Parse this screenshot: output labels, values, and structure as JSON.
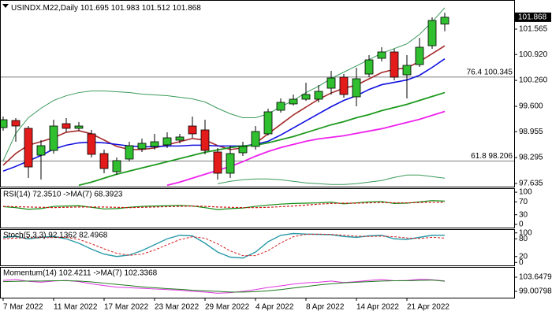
{
  "chart_data": [
    {
      "type": "candlestick",
      "title": "USINDX.M22,Daily",
      "categories": [
        "7 Mar 2022",
        null,
        null,
        null,
        "11 Mar 2022",
        null,
        null,
        null,
        "17 Mar 2022",
        null,
        null,
        null,
        "23 Mar 2022",
        null,
        null,
        null,
        "29 Mar 2022",
        null,
        null,
        null,
        "4 Apr 2022",
        null,
        null,
        null,
        "8 Apr 2022",
        null,
        null,
        null,
        "14 Apr 2022",
        null,
        null,
        null,
        "21 Apr 2022",
        null,
        null,
        null
      ],
      "open": [
        99.059,
        99.239,
        99.039,
        98.357,
        98.477,
        99.159,
        99.039,
        98.899,
        98.397,
        97.936,
        98.257,
        98.518,
        98.578,
        98.618,
        98.738,
        99.099,
        98.999,
        98.437,
        97.896,
        98.417,
        98.578,
        98.899,
        99.5,
        99.661,
        99.781,
        99.781,
        100.061,
        100.342,
        99.841,
        100.422,
        100.823,
        100.984,
        100.402,
        100.663,
        101.144,
        101.695
      ],
      "high": [
        99.34,
        99.3,
        99.099,
        98.738,
        99.259,
        99.3,
        99.199,
        98.999,
        98.498,
        98.297,
        98.698,
        98.778,
        98.899,
        98.939,
        98.899,
        99.34,
        99.259,
        98.538,
        98.598,
        98.698,
        99.099,
        99.54,
        99.801,
        99.901,
        100.202,
        100.141,
        100.502,
        100.422,
        100.583,
        100.904,
        101.104,
        101.064,
        100.904,
        101.345,
        101.866,
        101.983
      ],
      "low": [
        98.979,
        98.698,
        97.776,
        97.736,
        98.397,
        98.939,
        98.979,
        98.297,
        97.896,
        97.856,
        98.197,
        98.437,
        98.498,
        98.538,
        98.658,
        98.798,
        98.377,
        97.736,
        97.776,
        98.337,
        98.498,
        98.859,
        99.44,
        99.62,
        99.741,
        99.701,
        99.901,
        99.821,
        99.6,
        100.342,
        100.743,
        100.262,
        99.801,
        100.603,
        101.064,
        101.512
      ],
      "close": [
        99.259,
        99.099,
        98.056,
        98.598,
        99.099,
        99.039,
        99.099,
        98.377,
        98.016,
        98.217,
        98.598,
        98.658,
        98.698,
        98.798,
        98.819,
        98.899,
        98.477,
        97.896,
        98.397,
        98.578,
        98.959,
        99.46,
        99.701,
        99.781,
        99.901,
        99.981,
        100.322,
        99.901,
        100.302,
        100.783,
        100.984,
        100.342,
        100.643,
        101.104,
        101.786,
        101.868
      ],
      "up_color": "#2fbf2f",
      "down_color": "#e31b1b",
      "series": [
        {
          "color": "#a52a2a",
          "values": [
            98.1,
            98.4,
            98.61,
            98.7,
            98.8,
            98.94,
            98.98,
            98.9,
            98.74,
            98.58,
            98.5,
            98.5,
            98.54,
            98.62,
            98.7,
            98.78,
            98.74,
            98.6,
            98.5,
            98.54,
            98.66,
            98.9,
            99.14,
            99.38,
            99.58,
            99.78,
            99.94,
            100.06,
            100.14,
            100.3,
            100.46,
            100.54,
            100.58,
            100.74,
            100.94,
            101.14
          ]
        },
        {
          "color": "#1010e0",
          "values": [
            97.95,
            98.07,
            98.21,
            98.35,
            98.51,
            98.61,
            98.67,
            98.69,
            98.67,
            98.63,
            98.59,
            98.57,
            98.57,
            98.59,
            98.59,
            98.61,
            98.61,
            98.59,
            98.59,
            98.59,
            98.63,
            98.71,
            98.87,
            99.05,
            99.23,
            99.41,
            99.59,
            99.75,
            99.87,
            100.03,
            100.15,
            100.21,
            100.27,
            100.39,
            100.59,
            100.81
          ]
        },
        {
          "color": "#1e9a1e",
          "values": [
            null,
            null,
            null,
            null,
            null,
            null,
            97.59,
            97.67,
            97.77,
            97.87,
            97.95,
            98.03,
            98.11,
            98.19,
            98.27,
            98.35,
            98.43,
            98.49,
            98.55,
            98.59,
            98.61,
            98.67,
            98.75,
            98.83,
            98.93,
            99.03,
            99.13,
            99.21,
            99.31,
            99.39,
            99.49,
            99.57,
            99.65,
            99.75,
            99.85,
            99.95
          ]
        },
        {
          "color": "#ee22ee",
          "values": [
            null,
            null,
            null,
            null,
            null,
            null,
            null,
            null,
            null,
            null,
            null,
            null,
            null,
            97.59,
            97.67,
            97.77,
            97.87,
            97.97,
            98.07,
            98.19,
            98.33,
            98.45,
            98.55,
            98.63,
            98.71,
            98.77,
            98.81,
            98.85,
            98.91,
            98.97,
            99.03,
            99.11,
            99.19,
            99.27,
            99.37,
            99.47
          ]
        },
        {
          "color": "#3a9a5a",
          "values": [
            98.21,
            98.91,
            99.31,
            99.55,
            99.75,
            99.87,
            99.95,
            99.99,
            99.99,
            99.97,
            99.95,
            99.91,
            99.89,
            99.87,
            99.83,
            99.79,
            99.71,
            99.55,
            99.41,
            99.31,
            99.31,
            99.41,
            99.59,
            99.75,
            99.95,
            100.11,
            100.31,
            100.47,
            100.63,
            100.79,
            100.95,
            101.07,
            101.19,
            101.43,
            101.75,
            102.11
          ]
        },
        {
          "color": "#3a9a5a",
          "values": [
            null,
            null,
            null,
            null,
            null,
            null,
            null,
            null,
            null,
            null,
            null,
            null,
            null,
            null,
            null,
            null,
            null,
            97.63,
            97.69,
            97.73,
            97.75,
            97.75,
            97.73,
            97.69,
            97.65,
            97.63,
            97.61,
            97.61,
            97.63,
            97.67,
            97.71,
            97.79,
            97.85,
            97.85,
            97.81,
            97.77
          ]
        }
      ],
      "annotations": [
        {
          "text": "76.4 100.345",
          "value": 100.345
        },
        {
          "text": "61.8 98.206",
          "value": 98.206
        }
      ],
      "ylim": [
        97.555,
        102.267
      ],
      "yticks": [
        101.565,
        {
          "value": 100.92,
          "label": "100.920"
        },
        {
          "value": 100.26,
          "label": "100.260"
        },
        {
          "value": 99.6,
          "label": "99.600"
        },
        98.955,
        98.295,
        97.635
      ]
    },
    {
      "type": "line",
      "title": "RSI(14) 72.3510 ->MA(7) 68.3923",
      "series": [
        {
          "color": "#118a11",
          "values": [
            55,
            52,
            47,
            49,
            56,
            57,
            58,
            53,
            48,
            49,
            53,
            56,
            57,
            58,
            59,
            57,
            52,
            46,
            49,
            51,
            56,
            60,
            63,
            65,
            66,
            67,
            69,
            64,
            67,
            70,
            71,
            65,
            66,
            70,
            74,
            72.351
          ]
        },
        {
          "color": "#cc1111",
          "values": [
            56,
            55,
            54,
            53,
            52,
            53,
            54,
            54,
            54,
            53,
            52,
            53,
            54,
            55,
            56,
            57,
            56,
            54,
            53,
            52,
            52,
            53,
            55,
            57,
            60,
            63,
            65,
            66,
            66,
            67,
            68,
            67,
            67,
            68,
            69,
            68.3923
          ]
        }
      ],
      "ylim": [
        -10,
        110
      ],
      "yticks": [
        100,
        70,
        30,
        0
      ]
    },
    {
      "type": "line",
      "title": "Stoch(5,3,3) 92.1362 82.4968",
      "series": [
        {
          "color": "#2a9aa8",
          "values": [
            85,
            88,
            80,
            85,
            88,
            80,
            65,
            45,
            28,
            20,
            25,
            40,
            60,
            80,
            92,
            90,
            65,
            35,
            18,
            15,
            35,
            70,
            92,
            98,
            96,
            95,
            94,
            88,
            85,
            90,
            92,
            80,
            78,
            85,
            92,
            92.1362
          ]
        },
        {
          "color": "#d42020",
          "values": [
            80,
            82,
            84,
            84,
            84,
            85,
            78,
            63,
            46,
            31,
            24,
            28,
            42,
            60,
            77,
            87,
            82,
            63,
            39,
            23,
            23,
            40,
            66,
            87,
            95,
            96,
            95,
            92,
            89,
            88,
            89,
            87,
            83,
            81,
            85,
            82.4968
          ]
        }
      ],
      "ylim": [
        -10,
        110
      ],
      "yticks": [
        100,
        80,
        20,
        0
      ]
    },
    {
      "type": "line",
      "title": "Momentum(14) 102.4211 ->MA(7) 102.3368",
      "series": [
        {
          "color": "#dd33dd",
          "values": [
            102.6,
            102.9,
            102.3,
            102.0,
            102.4,
            102.6,
            102.2,
            101.5,
            100.9,
            100.4,
            100.2,
            100.0,
            99.8,
            99.6,
            99.4,
            99.0,
            98.8,
            98.4,
            98.6,
            99.0,
            99.6,
            100.3,
            100.8,
            101.4,
            101.8,
            102.0,
            102.4,
            101.9,
            102.2,
            102.6,
            102.9,
            102.5,
            102.6,
            103.0,
            102.8,
            102.4211
          ]
        },
        {
          "color": "#1e7a1e",
          "values": [
            102.2,
            102.3,
            102.4,
            102.4,
            102.5,
            102.5,
            102.4,
            102.1,
            101.7,
            101.3,
            100.9,
            100.5,
            100.2,
            99.9,
            99.7,
            99.4,
            99.2,
            99.0,
            98.8,
            98.8,
            98.9,
            99.2,
            99.6,
            100.1,
            100.6,
            101.1,
            101.5,
            101.8,
            102.0,
            102.2,
            102.4,
            102.5,
            102.5,
            102.6,
            102.7,
            102.3368
          ]
        }
      ],
      "ylim": [
        96.95,
        106.74
      ],
      "yticks": [
        103.6479,
        99.00798
      ]
    }
  ]
}
